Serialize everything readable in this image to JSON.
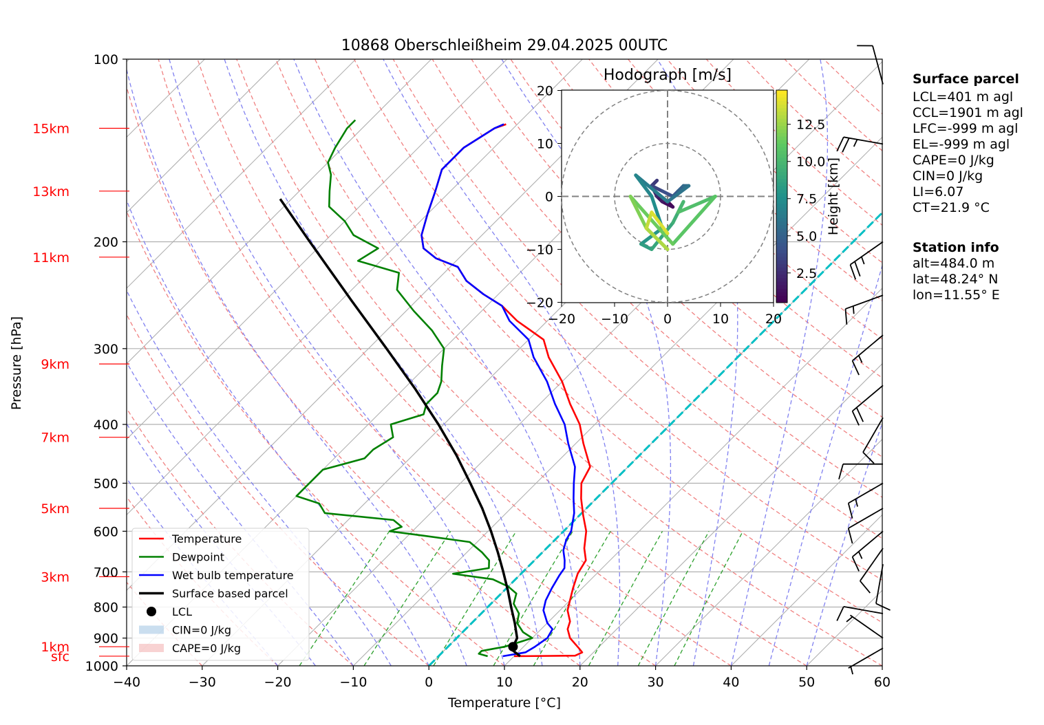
{
  "chart_data": {
    "type": "skew-t",
    "title": "10868 Oberschleißheim 29.04.2025 00UTC",
    "xlabel": "Temperature [°C]",
    "ylabel": "Pressure [hPa]",
    "xlim": [
      -40,
      60
    ],
    "ylim": [
      1000,
      100
    ],
    "x_ticks": [
      "−40",
      "−30",
      "−20",
      "−10",
      "0",
      "10",
      "20",
      "30",
      "40",
      "50",
      "60"
    ],
    "p_ticks": [
      "100",
      "200",
      "300",
      "400",
      "500",
      "600",
      "700",
      "800",
      "900",
      "1000"
    ],
    "height_labels": [
      {
        "label": "15km",
        "p": 130
      },
      {
        "label": "13km",
        "p": 165
      },
      {
        "label": "11km",
        "p": 212
      },
      {
        "label": "9km",
        "p": 318
      },
      {
        "label": "7km",
        "p": 420
      },
      {
        "label": "5km",
        "p": 550
      },
      {
        "label": "3km",
        "p": 713
      },
      {
        "label": "1km",
        "p": 930
      },
      {
        "label": "sfc",
        "p": 964
      }
    ],
    "series": [
      {
        "name": "Temperature",
        "color": "#ff0000",
        "points": [
          [
            964,
            10
          ],
          [
            962,
            18
          ],
          [
            950,
            18.5
          ],
          [
            935,
            17.5
          ],
          [
            900,
            15
          ],
          [
            870,
            13.5
          ],
          [
            845,
            12.8
          ],
          [
            810,
            11
          ],
          [
            780,
            10
          ],
          [
            745,
            8.8
          ],
          [
            705,
            7.5
          ],
          [
            670,
            6.8
          ],
          [
            640,
            5
          ],
          [
            600,
            3
          ],
          [
            565,
            0.5
          ],
          [
            530,
            -2
          ],
          [
            500,
            -4
          ],
          [
            470,
            -5
          ],
          [
            430,
            -9
          ],
          [
            400,
            -12
          ],
          [
            370,
            -16
          ],
          [
            340,
            -20
          ],
          [
            310,
            -25
          ],
          [
            290,
            -28
          ],
          [
            270,
            -34
          ],
          [
            255,
            -38
          ],
          [
            244,
            -42
          ],
          [
            232,
            -46
          ],
          [
            220,
            -49
          ],
          [
            213,
            -53
          ],
          [
            205,
            -56
          ],
          [
            195,
            -58
          ],
          [
            180,
            -60
          ],
          [
            165,
            -62
          ],
          [
            152,
            -64
          ],
          [
            140,
            -64
          ],
          [
            130,
            -62.5
          ],
          [
            128,
            -61.5
          ]
        ]
      },
      {
        "name": "Dewpoint",
        "color": "#008000",
        "points": [
          [
            964,
            6.5
          ],
          [
            955,
            5
          ],
          [
            945,
            5
          ],
          [
            930,
            7.5
          ],
          [
            900,
            10
          ],
          [
            880,
            8
          ],
          [
            850,
            6
          ],
          [
            820,
            5
          ],
          [
            790,
            3
          ],
          [
            760,
            2
          ],
          [
            740,
            0
          ],
          [
            720,
            -3
          ],
          [
            705,
            -9
          ],
          [
            690,
            -5
          ],
          [
            670,
            -6
          ],
          [
            650,
            -8
          ],
          [
            625,
            -11
          ],
          [
            610,
            -18
          ],
          [
            600,
            -23
          ],
          [
            590,
            -22
          ],
          [
            575,
            -24
          ],
          [
            560,
            -34
          ],
          [
            540,
            -36
          ],
          [
            525,
            -40
          ],
          [
            510,
            -40
          ],
          [
            490,
            -40
          ],
          [
            475,
            -40
          ],
          [
            455,
            -36
          ],
          [
            440,
            -36
          ],
          [
            420,
            -35
          ],
          [
            400,
            -37
          ],
          [
            385,
            -34
          ],
          [
            370,
            -35
          ],
          [
            355,
            -35
          ],
          [
            340,
            -36
          ],
          [
            320,
            -38
          ],
          [
            300,
            -40
          ],
          [
            280,
            -44
          ],
          [
            260,
            -49
          ],
          [
            240,
            -54
          ],
          [
            225,
            -56
          ],
          [
            215,
            -63
          ],
          [
            205,
            -62
          ],
          [
            195,
            -67
          ],
          [
            185,
            -70
          ],
          [
            175,
            -74
          ],
          [
            165,
            -76
          ],
          [
            155,
            -78
          ],
          [
            148,
            -80
          ],
          [
            140,
            -81
          ],
          [
            130,
            -82
          ],
          [
            126,
            -82
          ]
        ]
      },
      {
        "name": "Wet bulb temperature",
        "color": "#0000ff",
        "points": [
          [
            964,
            8.5
          ],
          [
            950,
            11
          ],
          [
            930,
            11.5
          ],
          [
            900,
            12
          ],
          [
            870,
            11.5
          ],
          [
            850,
            10
          ],
          [
            810,
            7.8
          ],
          [
            780,
            6.8
          ],
          [
            745,
            6
          ],
          [
            710,
            5.3
          ],
          [
            690,
            5
          ],
          [
            670,
            4
          ],
          [
            645,
            2.5
          ],
          [
            620,
            1.5
          ],
          [
            600,
            1
          ],
          [
            560,
            -1
          ],
          [
            530,
            -3
          ],
          [
            500,
            -5
          ],
          [
            470,
            -7
          ],
          [
            430,
            -11
          ],
          [
            400,
            -14
          ],
          [
            370,
            -18
          ],
          [
            340,
            -22
          ],
          [
            310,
            -27
          ],
          [
            290,
            -30
          ],
          [
            270,
            -35
          ],
          [
            255,
            -38
          ],
          [
            244,
            -42
          ],
          [
            232,
            -46
          ],
          [
            220,
            -49
          ],
          [
            213,
            -53
          ],
          [
            205,
            -56
          ],
          [
            195,
            -58
          ],
          [
            180,
            -60
          ],
          [
            165,
            -62
          ],
          [
            152,
            -64
          ],
          [
            140,
            -64
          ],
          [
            130,
            -62.5
          ],
          [
            128,
            -61.8
          ]
        ]
      },
      {
        "name": "Surface based parcel",
        "color": "#000000",
        "points": [
          [
            964,
            10.8
          ],
          [
            945,
            9.2
          ],
          [
            930,
            8.6
          ],
          [
            900,
            8
          ],
          [
            850,
            5.7
          ],
          [
            800,
            3.1
          ],
          [
            750,
            0.4
          ],
          [
            700,
            -2.6
          ],
          [
            650,
            -5.9
          ],
          [
            600,
            -9.6
          ],
          [
            550,
            -13.8
          ],
          [
            500,
            -18.7
          ],
          [
            450,
            -24.2
          ],
          [
            400,
            -30.7
          ],
          [
            350,
            -38.4
          ],
          [
            300,
            -47.6
          ],
          [
            250,
            -58.6
          ],
          [
            200,
            -71.9
          ],
          [
            170,
            -81.5
          ]
        ]
      }
    ],
    "lcl": {
      "name": "LCL",
      "p": 930,
      "t": 8.6
    },
    "legend": {
      "position": "lower-left",
      "entries": [
        "Temperature",
        "Dewpoint",
        "Wet bulb temperature",
        "Surface based parcel",
        "LCL",
        "CIN=0 J/kg",
        "CAPE=0 J/kg"
      ]
    },
    "hodograph": {
      "title": "Hodograph [m/s]",
      "xlim": [
        -20,
        20
      ],
      "ylim": [
        -20,
        20
      ],
      "ticks": [
        "−20",
        "−10",
        "0",
        "10",
        "20"
      ],
      "ring_radii": [
        10,
        20
      ],
      "colorbar_label": "Height [km]",
      "colorbar_ticks": [
        "2.5",
        "5.0",
        "7.5",
        "10.0",
        "12.5"
      ],
      "colorbar_range": [
        0.5,
        14.8
      ],
      "points": [
        [
          0,
          -1,
          0.5
        ],
        [
          1,
          -2,
          1
        ],
        [
          -1,
          -1,
          1.5
        ],
        [
          -2,
          0,
          2
        ],
        [
          -3,
          2,
          2.5
        ],
        [
          -2,
          3,
          3
        ],
        [
          -3,
          2,
          3.5
        ],
        [
          -1,
          1,
          4
        ],
        [
          1,
          0,
          4.5
        ],
        [
          2,
          1,
          5
        ],
        [
          3,
          2,
          5.5
        ],
        [
          4,
          2,
          6
        ],
        [
          0,
          -1,
          6.5
        ],
        [
          -6,
          4,
          7
        ],
        [
          -3,
          0,
          7.5
        ],
        [
          -1,
          -6,
          8
        ],
        [
          -5,
          -9,
          8.5
        ],
        [
          -3,
          -10,
          9
        ],
        [
          1,
          -5,
          9.5
        ],
        [
          3,
          -1,
          10
        ],
        [
          2,
          -3,
          10.5
        ],
        [
          9,
          0,
          11
        ],
        [
          1,
          -9,
          11.5
        ],
        [
          -7,
          0,
          12
        ],
        [
          -4,
          -6,
          12.5
        ],
        [
          0,
          -10,
          13
        ],
        [
          -4,
          -6,
          13.5
        ],
        [
          -3,
          -3,
          14
        ],
        [
          0,
          -7,
          14.5
        ]
      ]
    },
    "wind_barbs": [
      {
        "p": 110,
        "dir": 345,
        "speed": 10
      },
      {
        "p": 138,
        "dir": 280,
        "speed": 25
      },
      {
        "p": 200,
        "dir": 235,
        "speed": 25
      },
      {
        "p": 245,
        "dir": 250,
        "speed": 15
      },
      {
        "p": 285,
        "dir": 230,
        "speed": 15
      },
      {
        "p": 345,
        "dir": 230,
        "speed": 20
      },
      {
        "p": 390,
        "dir": 210,
        "speed": 10
      },
      {
        "p": 465,
        "dir": 270,
        "speed": 10
      },
      {
        "p": 500,
        "dir": 240,
        "speed": 15
      },
      {
        "p": 550,
        "dir": 240,
        "speed": 10
      },
      {
        "p": 600,
        "dir": 230,
        "speed": 15
      },
      {
        "p": 640,
        "dir": 215,
        "speed": 10
      },
      {
        "p": 680,
        "dir": 190,
        "speed": 10
      },
      {
        "p": 820,
        "dir": 280,
        "speed": 10
      },
      {
        "p": 900,
        "dir": 305,
        "speed": 5
      },
      {
        "p": 935,
        "dir": 240,
        "speed": 5
      }
    ]
  },
  "surface_parcel": {
    "heading": "Surface parcel",
    "lines": [
      "LCL=401 m agl",
      "CCL=1901 m agl",
      "LFC=-999 m agl",
      "EL=-999 m agl",
      "CAPE=0 J/kg",
      "CIN=0 J/kg",
      "LI=6.07",
      "CT=21.9 °C"
    ]
  },
  "station_info": {
    "heading": "Station info",
    "lines": [
      "alt=484.0 m",
      "lat=48.24° N",
      "lon=11.55° E"
    ]
  },
  "colors": {
    "temperature": "#ff0000",
    "dewpoint": "#008000",
    "wetbulb": "#0000ff",
    "parcel": "#000000",
    "height_labels": "#ff0000",
    "dry_adiabat": "#f08080",
    "moist_adiabat": "#8080f0",
    "mixing_ratio": "#2ca02c",
    "freezing_line": "#00bfc4",
    "isotherm": "#b0b0b0"
  }
}
